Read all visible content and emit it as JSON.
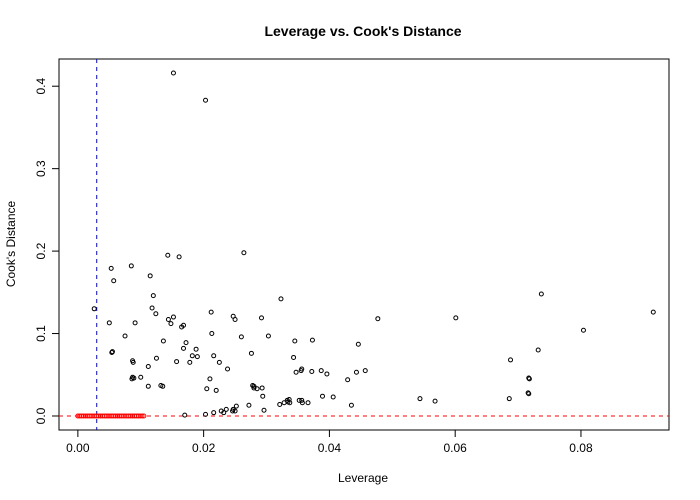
{
  "chart_data": {
    "type": "scatter",
    "title": "Leverage vs. Cook's Distance",
    "xlabel": "Leverage",
    "ylabel": "Cook's Distance",
    "xlim": [
      -0.003,
      0.094
    ],
    "ylim": [
      -0.017,
      0.433
    ],
    "x_ticks": [
      0.0,
      0.02,
      0.04,
      0.06,
      0.08
    ],
    "x_tick_labels": [
      "0.00",
      "0.02",
      "0.04",
      "0.06",
      "0.08"
    ],
    "y_ticks": [
      0.0,
      0.1,
      0.2,
      0.3,
      0.4
    ],
    "y_tick_labels": [
      "0.0",
      "0.1",
      "0.2",
      "0.3",
      "0.4"
    ],
    "grid": false,
    "reference_lines": [
      {
        "orientation": "vertical",
        "value": 0.003,
        "color": "#0000ff",
        "style": "dashed"
      },
      {
        "orientation": "horizontal",
        "value": 0.0,
        "color": "#ff0000",
        "style": "dashed"
      }
    ],
    "marker": {
      "shape": "open-circle",
      "color": "#000000",
      "low_influence_color": "#ff0000"
    },
    "points": {
      "x": [
        0.0026,
        0.0152,
        0.0203,
        0.0143,
        0.0161,
        0.0264,
        0.0053,
        0.0085,
        0.0057,
        0.0115,
        0.012,
        0.0118,
        0.0124,
        0.0144,
        0.0152,
        0.0168,
        0.0212,
        0.025,
        0.0247,
        0.0292,
        0.0323,
        0.005,
        0.0091,
        0.0148,
        0.0165,
        0.0213,
        0.026,
        0.0303,
        0.0345,
        0.0373,
        0.0387,
        0.0446,
        0.0477,
        0.0601,
        0.0737,
        0.0804,
        0.0915,
        0.0054,
        0.0055,
        0.0075,
        0.0087,
        0.0088,
        0.0089,
        0.01,
        0.0112,
        0.0125,
        0.0132,
        0.0136,
        0.0157,
        0.0168,
        0.0172,
        0.0178,
        0.0188,
        0.0182,
        0.019,
        0.0205,
        0.0216,
        0.022,
        0.0225,
        0.0238,
        0.0276,
        0.028,
        0.0343,
        0.0347,
        0.0355,
        0.0356,
        0.0366,
        0.0372,
        0.0396,
        0.0429,
        0.0443,
        0.0457,
        0.0732,
        0.0688,
        0.0717,
        0.0718,
        0.0716,
        0.0717,
        0.0686,
        0.0568,
        0.0544,
        0.0389,
        0.0406,
        0.0435,
        0.0352,
        0.0356,
        0.0357,
        0.0337,
        0.0333,
        0.0321,
        0.0336,
        0.0328,
        0.0334,
        0.0294,
        0.0293,
        0.0285,
        0.0278,
        0.028,
        0.0272,
        0.0252,
        0.0246,
        0.0247,
        0.0232,
        0.0228,
        0.0236,
        0.025,
        0.0296,
        0.021,
        0.0216,
        0.0203,
        0.017,
        0.0086,
        0.0087,
        0.0112,
        0.0135
      ],
      "y": [
        0.13,
        0.416,
        0.383,
        0.195,
        0.193,
        0.198,
        0.179,
        0.182,
        0.164,
        0.17,
        0.146,
        0.131,
        0.124,
        0.117,
        0.12,
        0.11,
        0.126,
        0.117,
        0.121,
        0.119,
        0.142,
        0.113,
        0.113,
        0.112,
        0.108,
        0.1,
        0.096,
        0.097,
        0.091,
        0.092,
        0.055,
        0.087,
        0.118,
        0.119,
        0.148,
        0.104,
        0.126,
        0.077,
        0.078,
        0.097,
        0.067,
        0.065,
        0.046,
        0.047,
        0.06,
        0.07,
        0.037,
        0.091,
        0.066,
        0.082,
        0.089,
        0.065,
        0.081,
        0.073,
        0.072,
        0.033,
        0.073,
        0.031,
        0.065,
        0.057,
        0.076,
        0.036,
        0.071,
        0.053,
        0.055,
        0.057,
        0.016,
        0.054,
        0.051,
        0.044,
        0.053,
        0.055,
        0.08,
        0.068,
        0.046,
        0.045,
        0.028,
        0.027,
        0.021,
        0.018,
        0.021,
        0.024,
        0.023,
        0.013,
        0.019,
        0.019,
        0.016,
        0.016,
        0.019,
        0.014,
        0.02,
        0.016,
        0.017,
        0.024,
        0.034,
        0.033,
        0.037,
        0.034,
        0.013,
        0.012,
        0.006,
        0.008,
        0.004,
        0.006,
        0.008,
        0.006,
        0.007,
        0.045,
        0.004,
        0.002,
        0.001,
        0.045,
        0.047,
        0.036,
        0.036
      ]
    },
    "low_points": {
      "x": [
        0.0,
        0.0003,
        0.0006,
        0.0009,
        0.0012,
        0.0015,
        0.0018,
        0.0021,
        0.0024,
        0.0027,
        0.003,
        0.0033,
        0.0036,
        0.0039,
        0.0042,
        0.0045,
        0.0048,
        0.0051,
        0.0054,
        0.0057,
        0.006,
        0.0063,
        0.0066,
        0.0069,
        0.0072,
        0.0075,
        0.0078,
        0.0081,
        0.0084,
        0.0087,
        0.009,
        0.0093,
        0.0096,
        0.0099,
        0.0102,
        0.0105
      ],
      "y": [
        0.0,
        0.0,
        0.0,
        0.0,
        0.0,
        0.0,
        0.0,
        0.0,
        0.0,
        0.0,
        0.0,
        0.0,
        0.0,
        0.0,
        0.0,
        0.0,
        0.0,
        0.0,
        0.0,
        0.0,
        0.0,
        0.0,
        0.0,
        0.0,
        0.0,
        0.0,
        0.0,
        0.0,
        0.0,
        0.0,
        0.0,
        0.0,
        0.0,
        0.0,
        0.0,
        0.0
      ]
    }
  }
}
